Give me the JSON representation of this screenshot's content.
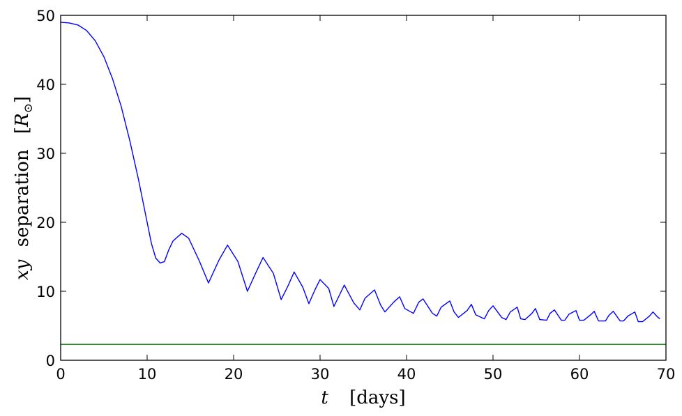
{
  "chart_data": {
    "type": "line",
    "xlabel": {
      "symbol": "t",
      "unit": "[days]"
    },
    "ylabel": {
      "symbol": "xy",
      "word": "separation",
      "unit_open": "[",
      "unit_symbol": "R",
      "unit_sub": "⊙",
      "unit_close": "]"
    },
    "xlim": [
      0,
      70
    ],
    "ylim": [
      0,
      50
    ],
    "xticks": [
      0,
      10,
      20,
      30,
      40,
      50,
      60,
      70
    ],
    "yticks": [
      0,
      10,
      20,
      30,
      40,
      50
    ],
    "grid": false,
    "series": [
      {
        "color": "#0000ff",
        "x": [
          0,
          1,
          2,
          3,
          4,
          5,
          6,
          7,
          8,
          9,
          10,
          10.5,
          11,
          11.5,
          12,
          12.5,
          13,
          14,
          14.8,
          16,
          17.1,
          18.3,
          19.3,
          20.5,
          21.6,
          22.5,
          23.4,
          24.6,
          25.5,
          26.3,
          27,
          28,
          28.7,
          29.4,
          30,
          31,
          31.6,
          32.3,
          32.8,
          33.9,
          34.6,
          35.2,
          36.3,
          37,
          37.5,
          38.5,
          39.2,
          39.8,
          40.8,
          41.4,
          41.9,
          43,
          43.5,
          44,
          45,
          45.5,
          46,
          47,
          47.5,
          48,
          49,
          49.5,
          50,
          51,
          51.5,
          52,
          52.8,
          53.2,
          53.7,
          54.5,
          54.9,
          55.4,
          56.2,
          56.6,
          57.1,
          57.9,
          58.3,
          58.8,
          59.6,
          60,
          60.5,
          61.3,
          61.7,
          62.2,
          63,
          63.4,
          63.9,
          64.7,
          65.1,
          65.6,
          66.4,
          66.8,
          67.3,
          68.1,
          68.5,
          69,
          69.3
        ],
        "y": [
          49,
          48.9,
          48.6,
          47.8,
          46.3,
          44,
          40.8,
          36.8,
          31.8,
          26.2,
          20,
          16.9,
          14.8,
          14.1,
          14.3,
          16,
          17.3,
          18.4,
          17.7,
          14.5,
          11.2,
          14.5,
          16.7,
          14.3,
          10,
          12.5,
          14.9,
          12.6,
          8.8,
          10.8,
          12.8,
          10.6,
          8.2,
          10.2,
          11.7,
          10.4,
          7.8,
          9.6,
          10.9,
          8.3,
          7.3,
          9,
          10.2,
          8,
          7,
          8.4,
          9.2,
          7.5,
          6.8,
          8.4,
          8.9,
          6.8,
          6.4,
          7.7,
          8.6,
          7,
          6.2,
          7.2,
          8.1,
          6.6,
          6,
          7.2,
          7.9,
          6.2,
          5.9,
          7,
          7.7,
          6,
          5.9,
          6.8,
          7.5,
          5.9,
          5.8,
          6.8,
          7.3,
          5.8,
          5.8,
          6.7,
          7.2,
          5.8,
          5.8,
          6.6,
          7.1,
          5.7,
          5.7,
          6.5,
          7.1,
          5.7,
          5.7,
          6.4,
          7,
          5.6,
          5.6,
          6.4,
          7,
          6.3,
          6
        ]
      },
      {
        "color": "#007f00",
        "x": [
          0,
          70
        ],
        "y": [
          2.3,
          2.3
        ]
      }
    ]
  }
}
